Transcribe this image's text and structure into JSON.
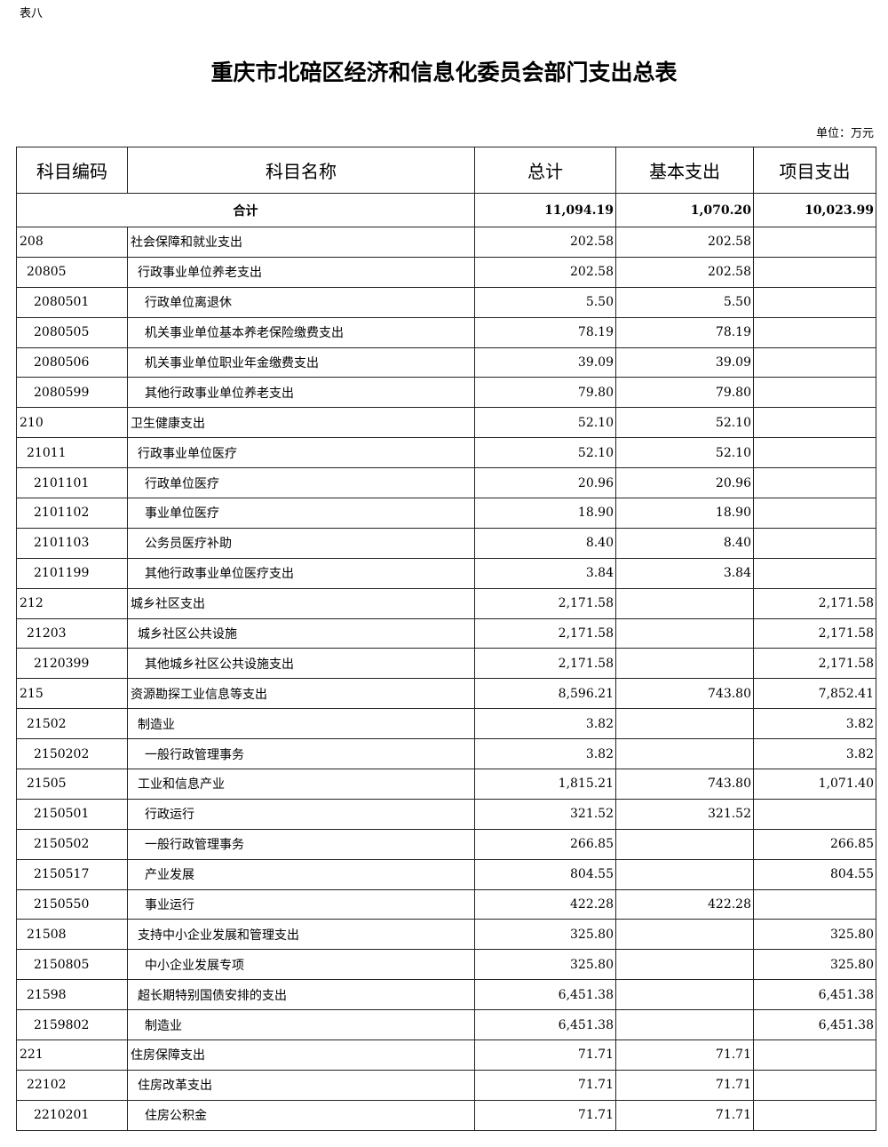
{
  "tag": "表八",
  "title": "重庆市北碚区经济和信息化委员会部门支出总表",
  "unit": "单位：万元",
  "headers": [
    "科目编码",
    "科目名称",
    "总计",
    "基本支出",
    "项目支出"
  ],
  "total": {
    "label": "合计",
    "total": "11,094.19",
    "basic": "1,070.20",
    "project": "10,023.99"
  },
  "rows": [
    {
      "code": "208",
      "name": "社会保障和就业支出",
      "total": "202.58",
      "basic": "202.58",
      "project": ""
    },
    {
      "code": "20805",
      "name": "行政事业单位养老支出",
      "total": "202.58",
      "basic": "202.58",
      "project": ""
    },
    {
      "code": "2080501",
      "name": "行政单位离退休",
      "total": "5.50",
      "basic": "5.50",
      "project": ""
    },
    {
      "code": "2080505",
      "name": "机关事业单位基本养老保险缴费支出",
      "total": "78.19",
      "basic": "78.19",
      "project": ""
    },
    {
      "code": "2080506",
      "name": "机关事业单位职业年金缴费支出",
      "total": "39.09",
      "basic": "39.09",
      "project": ""
    },
    {
      "code": "2080599",
      "name": "其他行政事业单位养老支出",
      "total": "79.80",
      "basic": "79.80",
      "project": ""
    },
    {
      "code": "210",
      "name": "卫生健康支出",
      "total": "52.10",
      "basic": "52.10",
      "project": ""
    },
    {
      "code": "21011",
      "name": "行政事业单位医疗",
      "total": "52.10",
      "basic": "52.10",
      "project": ""
    },
    {
      "code": "2101101",
      "name": "行政单位医疗",
      "total": "20.96",
      "basic": "20.96",
      "project": ""
    },
    {
      "code": "2101102",
      "name": "事业单位医疗",
      "total": "18.90",
      "basic": "18.90",
      "project": ""
    },
    {
      "code": "2101103",
      "name": "公务员医疗补助",
      "total": "8.40",
      "basic": "8.40",
      "project": ""
    },
    {
      "code": "2101199",
      "name": "其他行政事业单位医疗支出",
      "total": "3.84",
      "basic": "3.84",
      "project": ""
    },
    {
      "code": "212",
      "name": "城乡社区支出",
      "total": "2,171.58",
      "basic": "",
      "project": "2,171.58"
    },
    {
      "code": "21203",
      "name": "城乡社区公共设施",
      "total": "2,171.58",
      "basic": "",
      "project": "2,171.58"
    },
    {
      "code": "2120399",
      "name": "其他城乡社区公共设施支出",
      "total": "2,171.58",
      "basic": "",
      "project": "2,171.58"
    },
    {
      "code": "215",
      "name": "资源勘探工业信息等支出",
      "total": "8,596.21",
      "basic": "743.80",
      "project": "7,852.41"
    },
    {
      "code": "21502",
      "name": "制造业",
      "total": "3.82",
      "basic": "",
      "project": "3.82"
    },
    {
      "code": "2150202",
      "name": "一般行政管理事务",
      "total": "3.82",
      "basic": "",
      "project": "3.82"
    },
    {
      "code": "21505",
      "name": "工业和信息产业",
      "total": "1,815.21",
      "basic": "743.80",
      "project": "1,071.40"
    },
    {
      "code": "2150501",
      "name": "行政运行",
      "total": "321.52",
      "basic": "321.52",
      "project": ""
    },
    {
      "code": "2150502",
      "name": "一般行政管理事务",
      "total": "266.85",
      "basic": "",
      "project": "266.85"
    },
    {
      "code": "2150517",
      "name": "产业发展",
      "total": "804.55",
      "basic": "",
      "project": "804.55"
    },
    {
      "code": "2150550",
      "name": "事业运行",
      "total": "422.28",
      "basic": "422.28",
      "project": ""
    },
    {
      "code": "21508",
      "name": "支持中小企业发展和管理支出",
      "total": "325.80",
      "basic": "",
      "project": "325.80"
    },
    {
      "code": "2150805",
      "name": "中小企业发展专项",
      "total": "325.80",
      "basic": "",
      "project": "325.80"
    },
    {
      "code": "21598",
      "name": "超长期特别国债安排的支出",
      "total": "6,451.38",
      "basic": "",
      "project": "6,451.38"
    },
    {
      "code": "2159802",
      "name": "制造业",
      "total": "6,451.38",
      "basic": "",
      "project": "6,451.38"
    },
    {
      "code": "221",
      "name": "住房保障支出",
      "total": "71.71",
      "basic": "71.71",
      "project": ""
    },
    {
      "code": "22102",
      "name": "住房改革支出",
      "total": "71.71",
      "basic": "71.71",
      "project": ""
    },
    {
      "code": "2210201",
      "name": "住房公积金",
      "total": "71.71",
      "basic": "71.71",
      "project": ""
    }
  ]
}
